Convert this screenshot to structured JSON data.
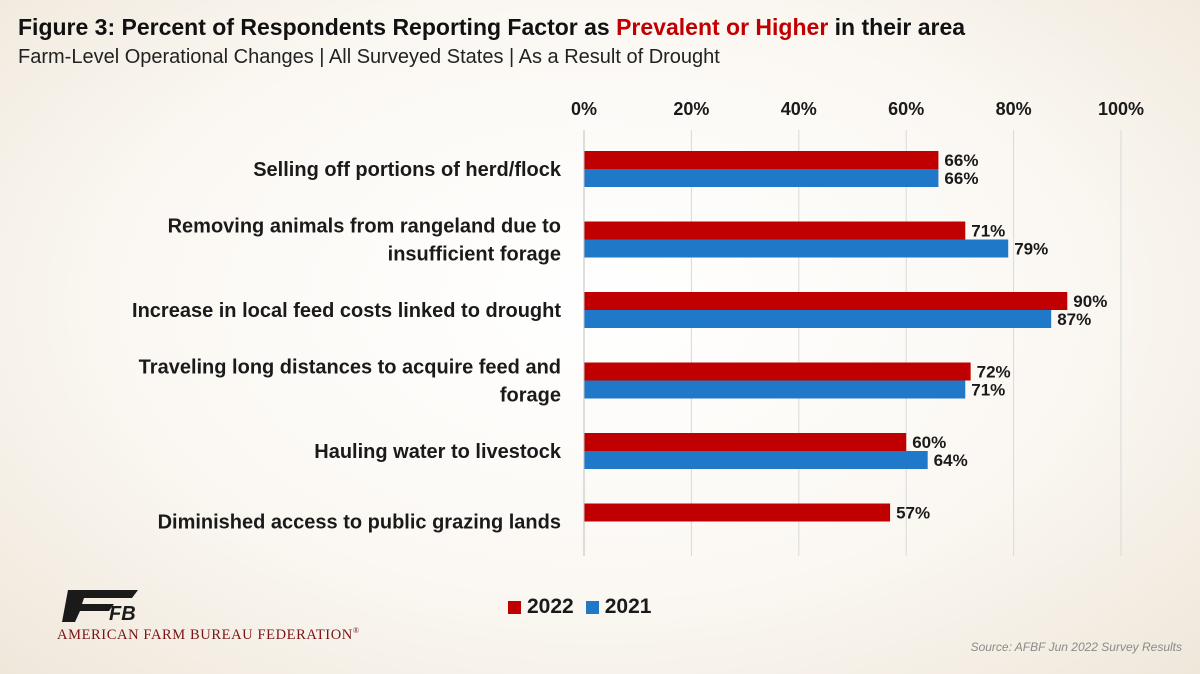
{
  "header": {
    "title_prefix": "Figure 3: Percent of Respondents Reporting Factor as ",
    "title_highlight": "Prevalent or Higher",
    "title_suffix": " in their area",
    "subtitle": "Farm-Level Operational Changes | All Surveyed States | As a Result of Drought"
  },
  "chart_data": {
    "type": "bar",
    "orientation": "horizontal",
    "title": "Figure 3: Percent of Respondents Reporting Factor as Prevalent or Higher in their area",
    "subtitle": "Farm-Level Operational Changes | All Surveyed States | As a Result of Drought",
    "categories": [
      [
        "Selling off portions of herd/flock"
      ],
      [
        "Removing animals from rangeland due to",
        "insufficient forage"
      ],
      [
        "Increase in local feed costs linked to drought"
      ],
      [
        "Traveling long distances to acquire feed and",
        "forage"
      ],
      [
        "Hauling water to livestock"
      ],
      [
        "Diminished access to public grazing lands"
      ]
    ],
    "series": [
      {
        "name": "2022",
        "color": "#c00000",
        "values": [
          66,
          71,
          90,
          72,
          60,
          57
        ]
      },
      {
        "name": "2021",
        "color": "#1f78c8",
        "values": [
          66,
          79,
          87,
          71,
          64,
          null
        ]
      }
    ],
    "xlim": [
      0,
      100
    ],
    "ticks": [
      "0%",
      "20%",
      "40%",
      "60%",
      "80%",
      "100%"
    ],
    "tick_values": [
      0,
      20,
      40,
      60,
      80,
      100
    ],
    "axis_position": "top",
    "grid": true,
    "legend_position": "bottom-center"
  },
  "legend": {
    "items": [
      "2022",
      "2021"
    ]
  },
  "branding": {
    "org": "AMERICAN FARM BUREAU FEDERATION",
    "registered": "®",
    "logo_text": "FB"
  },
  "source": "Source: AFBF Jun 2022 Survey Results"
}
